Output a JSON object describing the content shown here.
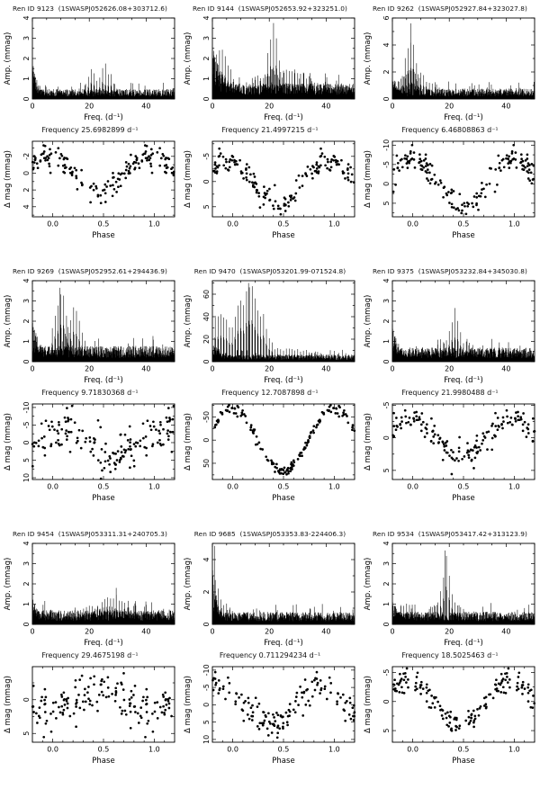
{
  "figure": {
    "background": "#ffffff",
    "ink": "#000000"
  },
  "panels": [
    {
      "title": "Ren ID 9123  (1SWASPJ052626.08+303712.6)",
      "frequency_label": "Frequency 25.6982899 d⁻¹"
    },
    {
      "title": "Ren ID 9144  (1SWASPJ052653.92+323251.0)",
      "frequency_label": "Frequency 21.4997215 d⁻¹"
    },
    {
      "title": "Ren ID 9262  (1SWASPJ052927.84+323027.8)",
      "frequency_label": "Frequency 6.46808863 d⁻¹"
    },
    {
      "title": "Ren ID 9269  (1SWASPJ052952.61+294436.9)",
      "frequency_label": "Frequency 9.71830368 d⁻¹"
    },
    {
      "title": "Ren ID 9470  (1SWASPJ053201.99-071524.8)",
      "frequency_label": "Frequency 12.7087898 d⁻¹"
    },
    {
      "title": "Ren ID 9375  (1SWASPJ053232.84+345030.8)",
      "frequency_label": "Frequency 21.9980488 d⁻¹"
    },
    {
      "title": "Ren ID 9454  (1SWASPJ053311.31+240705.3)",
      "frequency_label": "Frequency 29.4675198 d⁻¹"
    },
    {
      "title": "Ren ID 9685  (1SWASPJ053353.83-224406.3)",
      "frequency_label": "Frequency 0.711294234 d⁻¹"
    },
    {
      "title": "Ren ID 9534  (1SWASPJ053417.42+313123.9)",
      "frequency_label": "Frequency 18.5025463 d⁻¹"
    }
  ],
  "chart_data": [
    {
      "panel": "9123",
      "type": "line",
      "subtype": "periodogram",
      "xlabel": "Freq. (d⁻¹)",
      "ylabel": "Amp. (mmag)",
      "xlim": [
        0,
        50
      ],
      "xticks": [
        0,
        20,
        40
      ],
      "xminor": 5,
      "ylim": [
        0,
        4
      ],
      "yticks": [
        0,
        1,
        2,
        3,
        4
      ],
      "yminor": 0.5,
      "grid": false,
      "noise_floor": 0.35,
      "low_freq_noise": {
        "amp": 2.1,
        "decay": 2.3
      },
      "main_peak": {
        "freq_d": 25.6982899,
        "amp_mmag": 1.75
      },
      "alias_combs": [
        {
          "center": 25.7,
          "spacing": 1,
          "count": 8,
          "sigma": 2.8,
          "max": 1.55
        },
        {
          "center": 20.7,
          "spacing": 1,
          "count": 4,
          "sigma": 2.0,
          "max": 1.45
        }
      ]
    },
    {
      "panel": "9123",
      "type": "scatter",
      "subtype": "phase-folded-lightcurve",
      "xlabel": "Phase",
      "ylabel": "Δ mag (mmag)",
      "xlim": [
        -0.2,
        1.2
      ],
      "xticks": [
        0,
        0.5,
        1
      ],
      "xtick_labels": [
        "0.0",
        "0.5",
        "1.0"
      ],
      "xminor": 0.1,
      "y_inverted": true,
      "ylim": [
        -3.8,
        5.2
      ],
      "yticks": [
        -2,
        0,
        2,
        4
      ],
      "yminor": 1,
      "grid": false,
      "model": {
        "type": "cosine",
        "amplitude": 2.1,
        "phase_of_minimum": 0.45,
        "scatter_sigma": 0.75,
        "n_points": 110
      }
    },
    {
      "panel": "9144",
      "type": "line",
      "subtype": "periodogram",
      "xlabel": "Freq. (d⁻¹)",
      "ylabel": "Amp. (mmag)",
      "xlim": [
        0,
        50
      ],
      "xticks": [
        0,
        20,
        40
      ],
      "xminor": 5,
      "ylim": [
        0,
        4
      ],
      "yticks": [
        0,
        1,
        2,
        3,
        4
      ],
      "yminor": 0.5,
      "grid": false,
      "noise_floor": 0.55,
      "low_freq_noise": {
        "amp": 2.6,
        "decay": 5
      },
      "main_peak": {
        "freq_d": 21.4997215,
        "amp_mmag": 3.75
      },
      "alias_combs": [
        {
          "center": 21.5,
          "spacing": 1,
          "count": 10,
          "sigma": 2.2,
          "max": 3.3
        },
        {
          "center": 2.5,
          "spacing": 1,
          "count": 9,
          "sigma": 4.0,
          "max": 2.5
        },
        {
          "center": 25,
          "spacing": 1,
          "count": 24,
          "sigma": 12,
          "max": 1.5
        }
      ]
    },
    {
      "panel": "9144",
      "type": "scatter",
      "subtype": "phase-folded-lightcurve",
      "xlabel": "Phase",
      "ylabel": "Δ mag (mmag)",
      "xlim": [
        -0.2,
        1.2
      ],
      "xticks": [
        0,
        0.5,
        1
      ],
      "xtick_labels": [
        "0.0",
        "0.5",
        "1.0"
      ],
      "xminor": 0.1,
      "y_inverted": true,
      "ylim": [
        -8,
        7
      ],
      "yticks": [
        -5,
        0,
        5
      ],
      "yminor": 2.5,
      "grid": false,
      "model": {
        "type": "cosine",
        "amplitude": 4.2,
        "phase_of_minimum": 0.45,
        "scatter_sigma": 1.1,
        "n_points": 115
      }
    },
    {
      "panel": "9262",
      "type": "line",
      "subtype": "periodogram",
      "xlabel": "Freq. (d⁻¹)",
      "ylabel": "Amp. (mmag)",
      "xlim": [
        0,
        50
      ],
      "xticks": [
        0,
        20,
        40
      ],
      "xminor": 5,
      "ylim": [
        0,
        6
      ],
      "yticks": [
        0,
        2,
        4,
        6
      ],
      "yminor": 1,
      "grid": false,
      "noise_floor": 0.55,
      "low_freq_noise": {
        "amp": 1.8,
        "decay": 3
      },
      "main_peak": {
        "freq_d": 6.46808863,
        "amp_mmag": 5.6
      },
      "alias_combs": [
        {
          "center": 6.5,
          "spacing": 1,
          "count": 9,
          "sigma": 2.0,
          "max": 5.0
        },
        {
          "center": 7,
          "spacing": 1,
          "count": 14,
          "sigma": 6,
          "max": 2.2
        }
      ]
    },
    {
      "panel": "9262",
      "type": "scatter",
      "subtype": "phase-folded-lightcurve",
      "xlabel": "Phase",
      "ylabel": "Δ mag (mmag)",
      "xlim": [
        -0.2,
        1.2
      ],
      "xticks": [
        0,
        0.5,
        1
      ],
      "xtick_labels": [
        "0.0",
        "0.5",
        "1.0"
      ],
      "xminor": 0.1,
      "y_inverted": true,
      "ylim": [
        -11,
        8.5
      ],
      "yticks": [
        -10,
        -5,
        0,
        5
      ],
      "yminor": 2.5,
      "grid": false,
      "model": {
        "type": "cosine",
        "amplitude": 6.5,
        "phase_of_minimum": 0.5,
        "scatter_sigma": 1.8,
        "n_points": 110
      }
    },
    {
      "panel": "9269",
      "type": "line",
      "subtype": "periodogram",
      "xlabel": "Freq. (d⁻¹)",
      "ylabel": "Amp. (mmag)",
      "xlim": [
        0,
        50
      ],
      "xticks": [
        0,
        20,
        40
      ],
      "xminor": 5,
      "ylim": [
        0,
        4
      ],
      "yticks": [
        0,
        1,
        2,
        3,
        4
      ],
      "yminor": 0.5,
      "grid": false,
      "noise_floor": 0.55,
      "low_freq_noise": {
        "amp": 2.0,
        "decay": 4
      },
      "main_peak": {
        "freq_d": 9.71830368,
        "amp_mmag": 3.65
      },
      "alias_combs": [
        {
          "center": 10,
          "spacing": 1,
          "count": 9,
          "sigma": 2.5,
          "max": 3.4
        },
        {
          "center": 14.5,
          "spacing": 1,
          "count": 8,
          "sigma": 3.0,
          "max": 2.6
        }
      ]
    },
    {
      "panel": "9269",
      "type": "scatter",
      "subtype": "phase-folded-lightcurve",
      "xlabel": "Phase",
      "ylabel": "Δ mag (mmag)",
      "xlim": [
        -0.2,
        1.2
      ],
      "xticks": [
        0,
        0.5,
        1
      ],
      "xtick_labels": [
        "0.0",
        "0.5",
        "1.0"
      ],
      "xminor": 0.1,
      "y_inverted": true,
      "ylim": [
        -11,
        10.5
      ],
      "yticks": [
        -10,
        -5,
        0,
        5,
        10
      ],
      "yminor": 2.5,
      "grid": false,
      "model": {
        "type": "cosine",
        "amplitude": 4.0,
        "phase_of_minimum": 0.6,
        "scatter_sigma": 2.9,
        "n_points": 115
      }
    },
    {
      "panel": "9470",
      "type": "line",
      "subtype": "periodogram",
      "xlabel": "Freq. (d⁻¹)",
      "ylabel": "Amp. (mmag)",
      "xlim": [
        0,
        50
      ],
      "xticks": [
        0,
        20,
        40
      ],
      "xminor": 5,
      "ylim": [
        0,
        72
      ],
      "yticks": [
        0,
        20,
        40,
        60
      ],
      "yminor": 10,
      "grid": false,
      "noise_floor": 4.5,
      "low_freq_noise": {
        "amp": 18,
        "decay": 6
      },
      "main_peak": {
        "freq_d": 12.7087898,
        "amp_mmag": 70
      },
      "alias_combs": [
        {
          "center": 13,
          "spacing": 1,
          "count": 13,
          "sigma": 5.0,
          "max": 68
        },
        {
          "center": 3,
          "spacing": 1,
          "count": 10,
          "sigma": 5.0,
          "max": 42
        },
        {
          "center": 25,
          "spacing": 1,
          "count": 25,
          "sigma": 14,
          "max": 12
        }
      ]
    },
    {
      "panel": "9470",
      "type": "scatter",
      "subtype": "phase-folded-lightcurve",
      "xlabel": "Phase",
      "ylabel": "Δ mag (mmag)",
      "xlim": [
        -0.2,
        1.2
      ],
      "xticks": [
        0,
        0.5,
        1
      ],
      "xtick_labels": [
        "0.0",
        "0.5",
        "1.0"
      ],
      "xminor": 0.1,
      "y_inverted": true,
      "ylim": [
        -78,
        85
      ],
      "yticks": [
        -50,
        0,
        50
      ],
      "yminor": 25,
      "grid": false,
      "model": {
        "type": "cosine",
        "amplitude": 68,
        "phase_of_minimum": 0.5,
        "scatter_sigma": 6,
        "n_points": 120
      }
    },
    {
      "panel": "9375",
      "type": "line",
      "subtype": "periodogram",
      "xlabel": "Freq. (d⁻¹)",
      "ylabel": "Amp. (mmag)",
      "xlim": [
        0,
        50
      ],
      "xticks": [
        0,
        20,
        40
      ],
      "xminor": 5,
      "ylim": [
        0,
        4
      ],
      "yticks": [
        0,
        1,
        2,
        3,
        4
      ],
      "yminor": 0.5,
      "grid": false,
      "noise_floor": 0.5,
      "low_freq_noise": {
        "amp": 1.9,
        "decay": 3
      },
      "main_peak": {
        "freq_d": 21.9980488,
        "amp_mmag": 2.65
      },
      "alias_combs": [
        {
          "center": 22,
          "spacing": 1,
          "count": 8,
          "sigma": 2.2,
          "max": 2.3
        },
        {
          "center": 22,
          "spacing": 1,
          "count": 16,
          "sigma": 8,
          "max": 1.1
        }
      ]
    },
    {
      "panel": "9375",
      "type": "scatter",
      "subtype": "phase-folded-lightcurve",
      "xlabel": "Phase",
      "ylabel": "Δ mag (mmag)",
      "xlim": [
        -0.2,
        1.2
      ],
      "xticks": [
        0,
        0.5,
        1
      ],
      "xtick_labels": [
        "0.0",
        "0.5",
        "1.0"
      ],
      "xminor": 0.1,
      "y_inverted": true,
      "ylim": [
        -5.2,
        6.4
      ],
      "yticks": [
        -5,
        0,
        5
      ],
      "yminor": 2.5,
      "grid": false,
      "model": {
        "type": "cosine",
        "amplitude": 2.8,
        "phase_of_minimum": 0.48,
        "scatter_sigma": 1.1,
        "n_points": 115
      }
    },
    {
      "panel": "9454",
      "type": "line",
      "subtype": "periodogram",
      "xlabel": "Freq. (d⁻¹)",
      "ylabel": "Amp. (mmag)",
      "xlim": [
        0,
        50
      ],
      "xticks": [
        0,
        20,
        40
      ],
      "xminor": 5,
      "ylim": [
        0,
        4
      ],
      "yticks": [
        0,
        1,
        2,
        3,
        4
      ],
      "yminor": 0.5,
      "grid": false,
      "noise_floor": 0.5,
      "low_freq_noise": {
        "amp": 1.4,
        "decay": 3
      },
      "main_peak": {
        "freq_d": 29.4675198,
        "amp_mmag": 1.8
      },
      "alias_combs": [
        {
          "center": 28.5,
          "spacing": 1,
          "count": 14,
          "sigma": 5.0,
          "max": 1.5
        },
        {
          "center": 22,
          "spacing": 1,
          "count": 20,
          "sigma": 12,
          "max": 0.95
        }
      ]
    },
    {
      "panel": "9454",
      "type": "scatter",
      "subtype": "phase-folded-lightcurve",
      "xlabel": "Phase",
      "ylabel": "Δ mag (mmag)",
      "xlim": [
        -0.2,
        1.2
      ],
      "xticks": [
        0,
        0.5,
        1
      ],
      "xtick_labels": [
        "0.0",
        "0.5",
        "1.0"
      ],
      "xminor": 0.1,
      "y_inverted": true,
      "ylim": [
        -4.9,
        6.3
      ],
      "yticks": [
        0,
        5
      ],
      "yminor": 2.5,
      "grid": false,
      "model": {
        "type": "cosine",
        "amplitude": 1.3,
        "phase_of_minimum": 0.95,
        "scatter_sigma": 1.8,
        "n_points": 110
      }
    },
    {
      "panel": "9685",
      "type": "line",
      "subtype": "periodogram",
      "xlabel": "Freq. (d⁻¹)",
      "ylabel": "Amp. (mmag)",
      "xlim": [
        0,
        50
      ],
      "xticks": [
        0,
        20,
        40
      ],
      "xminor": 5,
      "ylim": [
        0,
        5
      ],
      "yticks": [
        0,
        2,
        4
      ],
      "yminor": 1,
      "grid": false,
      "noise_floor": 0.55,
      "low_freq_noise": {
        "amp": 3.6,
        "decay": 2
      },
      "main_peak": {
        "freq_d": 0.711294234,
        "amp_mmag": 4.85
      },
      "alias_combs": [
        {
          "center": 1,
          "spacing": 1,
          "count": 5,
          "sigma": 1.6,
          "max": 3.2
        },
        {
          "center": 3,
          "spacing": 1,
          "count": 10,
          "sigma": 4.0,
          "max": 1.4
        }
      ]
    },
    {
      "panel": "9685",
      "type": "scatter",
      "subtype": "phase-folded-lightcurve",
      "xlabel": "Phase",
      "ylabel": "Δ mag (mmag)",
      "xlim": [
        -0.2,
        1.2
      ],
      "xticks": [
        0,
        0.5,
        1
      ],
      "xtick_labels": [
        "0.0",
        "0.5",
        "1.0"
      ],
      "xminor": 0.1,
      "y_inverted": true,
      "ylim": [
        -11,
        10.8
      ],
      "yticks": [
        -10,
        -5,
        0,
        5,
        10
      ],
      "yminor": 2.5,
      "grid": false,
      "model": {
        "type": "cosine",
        "amplitude": 5.8,
        "phase_of_minimum": 0.38,
        "scatter_sigma": 2.2,
        "n_points": 110
      }
    },
    {
      "panel": "9534",
      "type": "line",
      "subtype": "periodogram",
      "xlabel": "Freq. (d⁻¹)",
      "ylabel": "Amp. (mmag)",
      "xlim": [
        0,
        50
      ],
      "xticks": [
        0,
        20,
        40
      ],
      "xminor": 5,
      "ylim": [
        0,
        4
      ],
      "yticks": [
        0,
        1,
        2,
        3,
        4
      ],
      "yminor": 0.5,
      "grid": false,
      "noise_floor": 0.45,
      "low_freq_noise": {
        "amp": 1.4,
        "decay": 3
      },
      "main_peak": {
        "freq_d": 18.5025463,
        "amp_mmag": 3.65
      },
      "alias_combs": [
        {
          "center": 19,
          "spacing": 1,
          "count": 7,
          "sigma": 1.8,
          "max": 3.3
        },
        {
          "center": 19,
          "spacing": 1,
          "count": 14,
          "sigma": 6,
          "max": 1.2
        },
        {
          "center": 5,
          "spacing": 1,
          "count": 4,
          "sigma": 3,
          "max": 1.15
        }
      ]
    },
    {
      "panel": "9534",
      "type": "scatter",
      "subtype": "phase-folded-lightcurve",
      "xlabel": "Phase",
      "ylabel": "Δ mag (mmag)",
      "xlim": [
        -0.2,
        1.2
      ],
      "xticks": [
        0,
        0.5,
        1
      ],
      "xtick_labels": [
        "0.0",
        "0.5",
        "1.0"
      ],
      "xminor": 0.1,
      "y_inverted": true,
      "ylim": [
        -6,
        7
      ],
      "yticks": [
        -5,
        0,
        5
      ],
      "yminor": 2.5,
      "grid": false,
      "model": {
        "type": "cosine",
        "amplitude": 3.8,
        "phase_of_minimum": 0.45,
        "scatter_sigma": 1.0,
        "n_points": 110
      }
    }
  ]
}
